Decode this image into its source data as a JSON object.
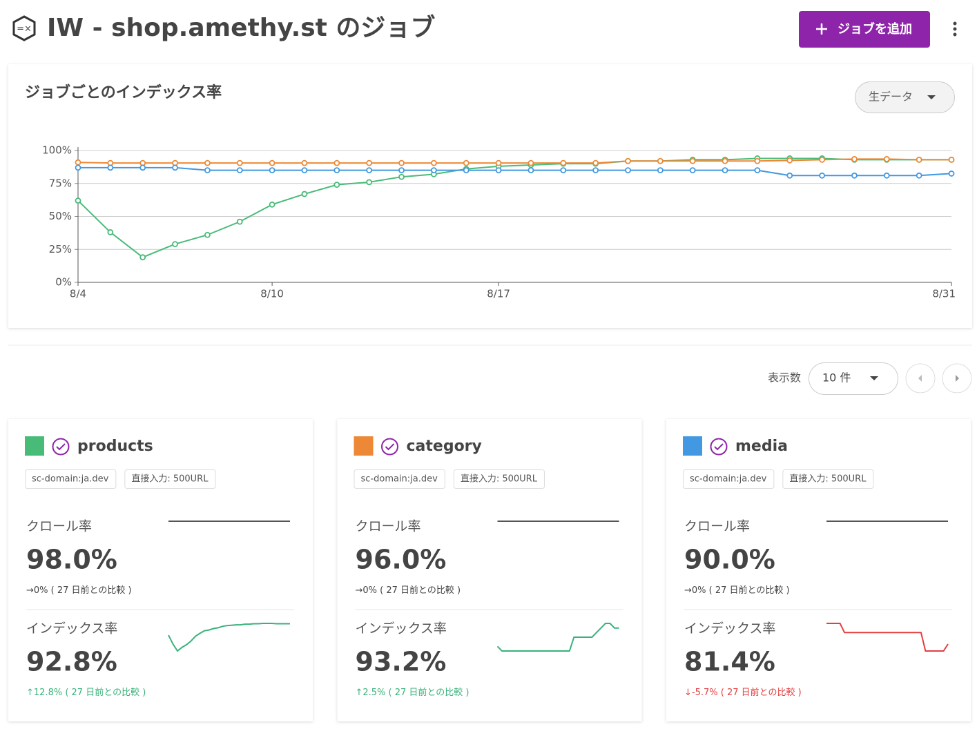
{
  "header": {
    "title": "IW - shop.amethy.st のジョブ",
    "button": "ジョブを追加"
  },
  "dropdown": "生データ",
  "pagination": {
    "label": "表示数",
    "value": "10 件"
  },
  "chart_data": {
    "type": "line",
    "title": "ジョブごとのインデックス率",
    "x": [
      4,
      5,
      6,
      7,
      8,
      9,
      10,
      11,
      12,
      13,
      14,
      15,
      16,
      17,
      18,
      19,
      20,
      21,
      22,
      23,
      24,
      25,
      26,
      27,
      28,
      29,
      30,
      31
    ],
    "xlim": [
      4,
      31
    ],
    "xticks": [
      {
        "value": 4,
        "label": "8/4"
      },
      {
        "value": 10,
        "label": "8/10"
      },
      {
        "value": 17,
        "label": "8/17"
      },
      {
        "value": 31,
        "label": "8/31"
      }
    ],
    "ylim": [
      0,
      100
    ],
    "yticks": [
      {
        "value": 0,
        "label": "0%"
      },
      {
        "value": 25,
        "label": "25%"
      },
      {
        "value": 50,
        "label": "50%"
      },
      {
        "value": 75,
        "label": "75%"
      },
      {
        "value": 100,
        "label": "100%"
      }
    ],
    "grid": true,
    "series": [
      {
        "name": "products",
        "color": "#48bb78",
        "values": [
          62,
          38,
          19,
          29,
          36,
          46,
          59,
          67,
          74,
          76,
          80,
          82,
          86,
          88,
          89,
          90,
          90,
          92,
          92,
          93,
          93,
          94,
          94,
          94,
          93,
          93,
          93,
          93
        ]
      },
      {
        "name": "category",
        "color": "#ed8936",
        "values": [
          91,
          90.5,
          90.5,
          90.5,
          90.5,
          90.5,
          90.5,
          90.5,
          90.5,
          90.5,
          90.5,
          90.5,
          90.5,
          90.5,
          90.5,
          90.5,
          90.5,
          92,
          92,
          92,
          92,
          92,
          92.5,
          93,
          93.5,
          93.5,
          93,
          93
        ]
      },
      {
        "name": "media",
        "color": "#4299e1",
        "values": [
          87,
          87,
          87,
          87,
          85,
          85,
          85,
          85,
          85,
          85,
          85,
          85,
          85,
          85,
          85,
          85,
          85,
          85,
          85,
          85,
          85,
          85,
          81,
          81,
          81,
          81,
          81,
          82.5
        ]
      }
    ]
  },
  "cards": [
    {
      "name": "products",
      "color": "#48bb78",
      "tags": [
        "sc-domain:ja.dev",
        "直接入力: 500URL"
      ],
      "metrics": [
        {
          "label": "クロール率",
          "value": "98.0%",
          "change": "→0%",
          "note": " ( 27 日前との比較 )",
          "color": "#555555",
          "note_color": "#444444",
          "trend": [
            98,
            98,
            98,
            98,
            98,
            98,
            98
          ]
        },
        {
          "label": "インデックス率",
          "value": "92.8%",
          "change": "↑12.8%",
          "note": " ( 27 日前との比較 )",
          "color": "#38b27a",
          "note_color": "#38b27a"
        }
      ]
    },
    {
      "name": "category",
      "color": "#ed8936",
      "tags": [
        "sc-domain:ja.dev",
        "直接入力: 500URL"
      ],
      "metrics": [
        {
          "label": "クロール率",
          "value": "96.0%",
          "change": "→0%",
          "note": " ( 27 日前との比較 )",
          "color": "#555555",
          "note_color": "#444444",
          "trend": [
            96,
            96,
            96,
            96,
            96,
            96,
            96
          ]
        },
        {
          "label": "インデックス率",
          "value": "93.2%",
          "change": "↑2.5%",
          "note": " ( 27 日前との比較 )",
          "color": "#38b27a",
          "note_color": "#38b27a"
        }
      ]
    },
    {
      "name": "media",
      "color": "#4299e1",
      "tags": [
        "sc-domain:ja.dev",
        "直接入力: 500URL"
      ],
      "metrics": [
        {
          "label": "クロール率",
          "value": "90.0%",
          "change": "→0%",
          "note": " ( 27 日前との比較 )",
          "color": "#555555",
          "note_color": "#444444",
          "trend": [
            90,
            90,
            90,
            90,
            90,
            90,
            90
          ]
        },
        {
          "label": "インデックス率",
          "value": "81.4%",
          "change": "↓-5.7%",
          "note": " ( 27 日前との比較 )",
          "color": "#e53e3e",
          "note_color": "#e53e3e"
        }
      ]
    }
  ]
}
